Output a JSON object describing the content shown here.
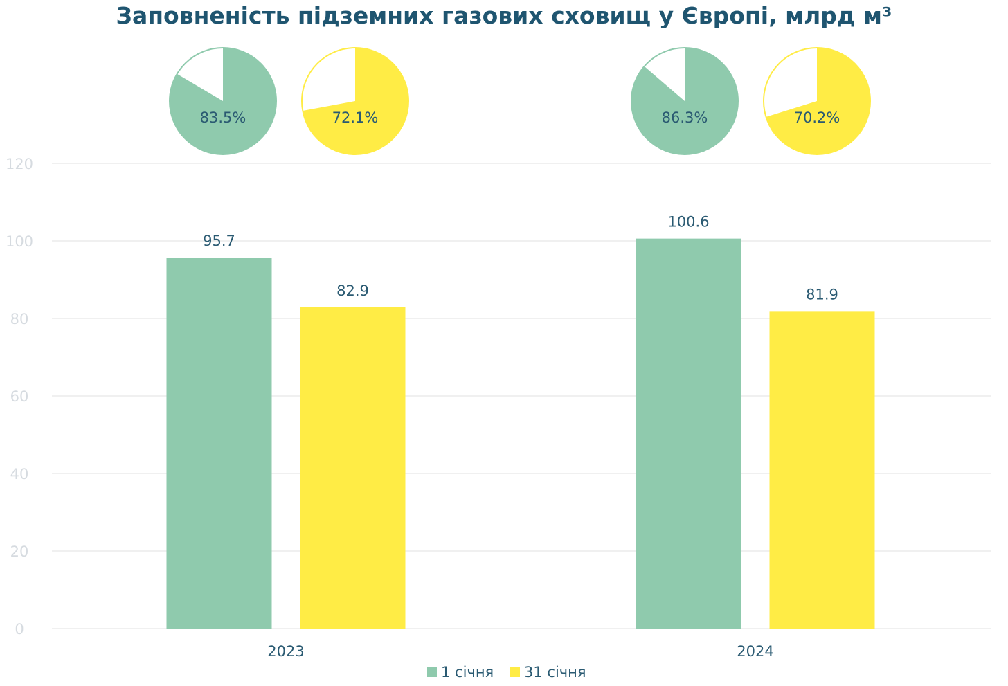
{
  "chart_data": {
    "type": "bar",
    "title": "Заповненість підземних газових сховищ у Європі, млрд м³",
    "categories": [
      "2023",
      "2024"
    ],
    "series": [
      {
        "name": "1 січня",
        "color": "#8fcaad",
        "values": [
          95.7,
          100.6
        ],
        "labels": [
          "95.7",
          "100.6"
        ]
      },
      {
        "name": "31 січня",
        "color": "#ffec45",
        "values": [
          82.9,
          81.9
        ],
        "labels": [
          "82.9",
          "81.9"
        ]
      }
    ],
    "ylim": [
      0,
      120
    ],
    "yticks": [
      0,
      20,
      40,
      60,
      80,
      100,
      120
    ],
    "grid": true,
    "legend_position": "bottom",
    "fill_levels": {
      "note_label_format": "percent",
      "items": [
        {
          "category": "2023",
          "series": "1 січня",
          "percent": 83.5,
          "label": "83.5%",
          "color": "#8fcaad"
        },
        {
          "category": "2023",
          "series": "31 січня",
          "percent": 72.1,
          "label": "72.1%",
          "color": "#ffec45"
        },
        {
          "category": "2024",
          "series": "1 січня",
          "percent": 86.3,
          "label": "86.3%",
          "color": "#8fcaad"
        },
        {
          "category": "2024",
          "series": "31 січня",
          "percent": 70.2,
          "label": "70.2%",
          "color": "#ffec45"
        }
      ]
    }
  }
}
